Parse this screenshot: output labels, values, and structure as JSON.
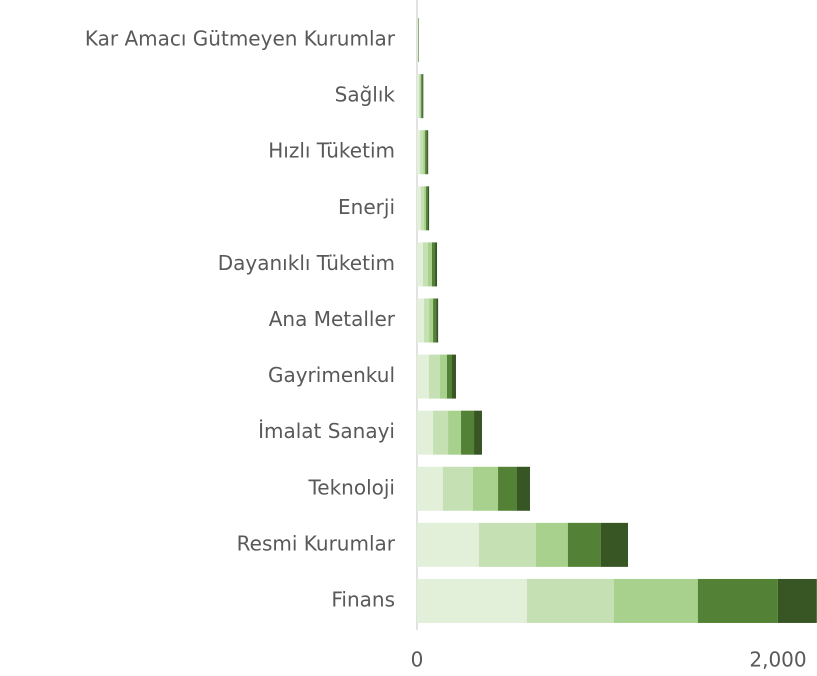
{
  "chart_data": {
    "type": "stacked_barh",
    "categories": [
      "Kar Amacı Gütmeyen Kurumlar",
      "Sağlık",
      "Hızlı Tüketim",
      "Enerji",
      "Dayanıklı Tüketim",
      "Ana Metaller",
      "Gayrimenkul",
      "İmalat Sanayi",
      "Teknoloji",
      "Resmi Kurumlar",
      "Finans"
    ],
    "series": [
      {
        "color": "#e2efd9",
        "values": [
          4,
          11,
          17,
          22,
          33,
          39,
          66,
          89,
          144,
          343,
          609
        ]
      },
      {
        "color": "#c5e0b3",
        "values": [
          2,
          6,
          17,
          17,
          28,
          28,
          61,
          83,
          166,
          316,
          482
        ]
      },
      {
        "color": "#a8d18d",
        "values": [
          2,
          6,
          11,
          11,
          22,
          22,
          39,
          72,
          139,
          177,
          465
        ]
      },
      {
        "color": "#538135",
        "values": [
          2,
          6,
          11,
          11,
          17,
          17,
          28,
          72,
          105,
          183,
          443
        ]
      },
      {
        "color": "#375623",
        "values": [
          1,
          6,
          6,
          6,
          11,
          11,
          22,
          44,
          72,
          150,
          216
        ]
      }
    ],
    "xlim": [
      0,
      2216
    ],
    "xticks": [
      0,
      {
        "value": 2000,
        "label": "2,000"
      }
    ]
  }
}
